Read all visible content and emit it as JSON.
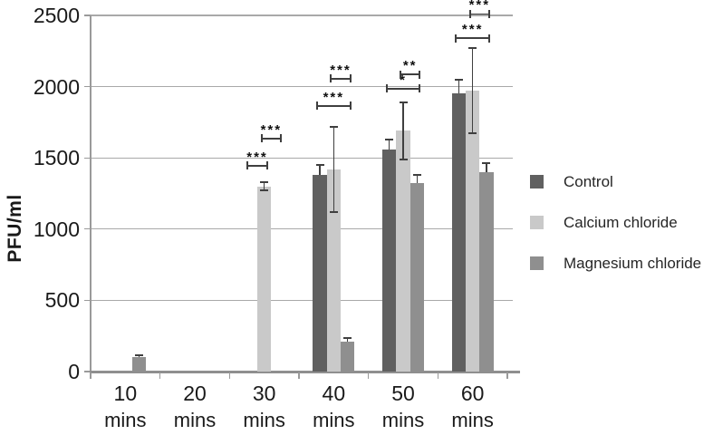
{
  "chart_data": {
    "type": "bar",
    "title": "",
    "ylabel": "PFU/ml",
    "xlabel": "",
    "ylim": [
      0,
      2500
    ],
    "y_ticks": [
      0,
      500,
      1000,
      1500,
      2000,
      2500
    ],
    "grid": true,
    "legend_position": "right",
    "categories": [
      {
        "line1": "10",
        "line2": "mins"
      },
      {
        "line1": "20",
        "line2": "mins"
      },
      {
        "line1": "30",
        "line2": "mins"
      },
      {
        "line1": "40",
        "line2": "mins"
      },
      {
        "line1": "50",
        "line2": "mins"
      },
      {
        "line1": "60",
        "line2": "mins"
      }
    ],
    "series": [
      {
        "name": "Control",
        "color": "#606060",
        "error_caps": "upper",
        "values": [
          0,
          0,
          0,
          1380,
          1560,
          1950
        ],
        "errors": [
          0,
          0,
          0,
          70,
          70,
          100
        ]
      },
      {
        "name": "Calcium chloride",
        "color": "#c9c9c9",
        "error_caps": "both",
        "values": [
          0,
          0,
          1300,
          1420,
          1690,
          1970
        ],
        "errors": [
          0,
          0,
          30,
          300,
          200,
          300
        ]
      },
      {
        "name": "Magnesium chloride",
        "color": "#8f8f8f",
        "error_caps": "upper",
        "values": [
          100,
          0,
          0,
          210,
          1320,
          1400
        ],
        "errors": [
          15,
          0,
          0,
          25,
          60,
          65
        ]
      }
    ],
    "significance": [
      {
        "category_index": 2,
        "from": "Control",
        "to": "Calcium chloride",
        "label": "***",
        "bar_y": 1445
      },
      {
        "category_index": 2,
        "from": "Calcium chloride",
        "to": "Magnesium chloride",
        "label": "***",
        "bar_y": 1635
      },
      {
        "category_index": 3,
        "from": "Control",
        "to": "Magnesium chloride",
        "label": "***",
        "bar_y": 1865
      },
      {
        "category_index": 3,
        "from": "Calcium chloride",
        "to": "Magnesium chloride",
        "label": "***",
        "bar_y": 2055
      },
      {
        "category_index": 4,
        "from": "Control",
        "to": "Magnesium chloride",
        "label": "*",
        "bar_y": 1985
      },
      {
        "category_index": 4,
        "from": "Calcium chloride",
        "to": "Magnesium chloride",
        "label": "**",
        "bar_y": 2085
      },
      {
        "category_index": 5,
        "from": "Control",
        "to": "Magnesium chloride",
        "label": "***",
        "bar_y": 2340
      },
      {
        "category_index": 5,
        "from": "Calcium chloride",
        "to": "Magnesium chloride",
        "label": "***",
        "bar_y": 2510
      }
    ]
  },
  "colors": {
    "gridline": "#a9a9a9",
    "axis": "#8f8f8f",
    "error_bars": "#3f3f3f",
    "text": "#1a1a1a"
  }
}
